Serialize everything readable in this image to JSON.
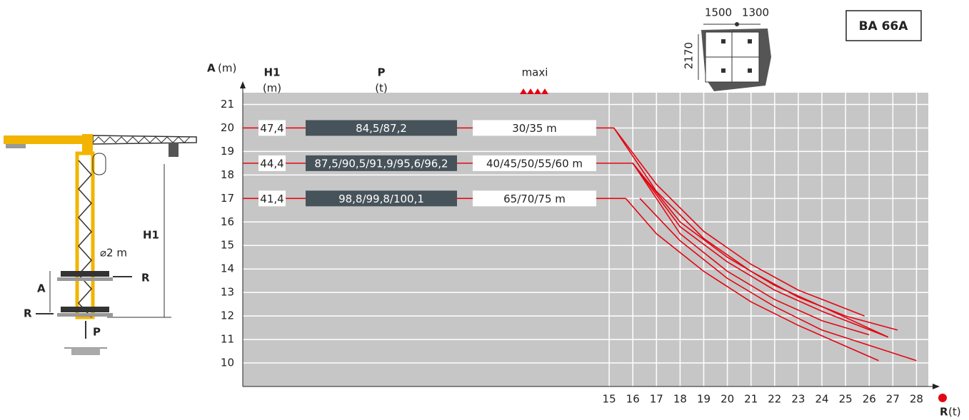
{
  "chart_data": {
    "type": "line",
    "model": "BA 66A",
    "y_label": {
      "symbol": "A",
      "unit": "(m)"
    },
    "x_label": {
      "symbol": "R",
      "unit": "(t)"
    },
    "headers": {
      "h1": "H1",
      "h1_unit": "(m)",
      "p": "P",
      "p_unit": "(t)",
      "maxi": "maxi"
    },
    "rows": [
      {
        "a": 20,
        "h1": "47,4",
        "p": "84,5/87,2",
        "maxi": "30/35 m"
      },
      {
        "a": 18.5,
        "h1": "44,4",
        "p": "87,5/90,5/91,9/95,6/96,2",
        "maxi": "40/45/50/55/60 m"
      },
      {
        "a": 17,
        "h1": "41,4",
        "p": "98,8/99,8/100,1",
        "maxi": "65/70/75 m"
      }
    ],
    "series": [
      {
        "color": "#e30613",
        "x": [
          15.2,
          17,
          19,
          21,
          23,
          25.8
        ],
        "values": [
          20,
          17.6,
          15.6,
          14.2,
          13.1,
          12.0
        ]
      },
      {
        "color": "#e30613",
        "x": [
          15.2,
          17,
          19,
          21,
          23,
          25,
          27.2
        ],
        "values": [
          20,
          17.3,
          15.3,
          13.9,
          12.8,
          12.0,
          11.4
        ]
      },
      {
        "color": "#e30613",
        "x": [
          16,
          18,
          20,
          22,
          24,
          26.8
        ],
        "values": [
          18.5,
          16.0,
          14.5,
          13.3,
          12.4,
          11.1
        ]
      },
      {
        "color": "#e30613",
        "x": [
          16,
          18,
          20,
          22,
          24,
          26.8
        ],
        "values": [
          18.5,
          15.8,
          14.3,
          13.1,
          12.2,
          11.1
        ]
      },
      {
        "color": "#e30613",
        "x": [
          16,
          18,
          20,
          22,
          24,
          26
        ],
        "values": [
          18.5,
          15.5,
          13.9,
          12.7,
          11.8,
          11.2
        ]
      },
      {
        "color": "#e30613",
        "x": [
          15.7,
          17,
          19,
          21,
          23,
          26.4
        ],
        "values": [
          17,
          15.5,
          13.9,
          12.6,
          11.6,
          10.1
        ]
      },
      {
        "color": "#e30613",
        "x": [
          16.3,
          18,
          20,
          22,
          24,
          28
        ],
        "values": [
          17,
          15.2,
          13.6,
          12.4,
          11.4,
          10.1
        ]
      }
    ],
    "xlim": [
      -0.5,
      28.5
    ],
    "ylim": [
      9,
      21.5
    ],
    "xticks": [
      15,
      16,
      17,
      18,
      19,
      20,
      21,
      22,
      23,
      24,
      25,
      26,
      27,
      28
    ],
    "yticks": [
      10,
      11,
      12,
      13,
      14,
      15,
      16,
      17,
      18,
      19,
      20,
      21
    ],
    "grid": true
  },
  "diagrams": {
    "crane": {
      "h1": "H1",
      "mast": "⌀2 m",
      "a": "A",
      "r_top": "R",
      "r_bottom": "R",
      "p": "P"
    },
    "base": {
      "w1": "1500",
      "w2": "1300",
      "h": "2170"
    }
  }
}
